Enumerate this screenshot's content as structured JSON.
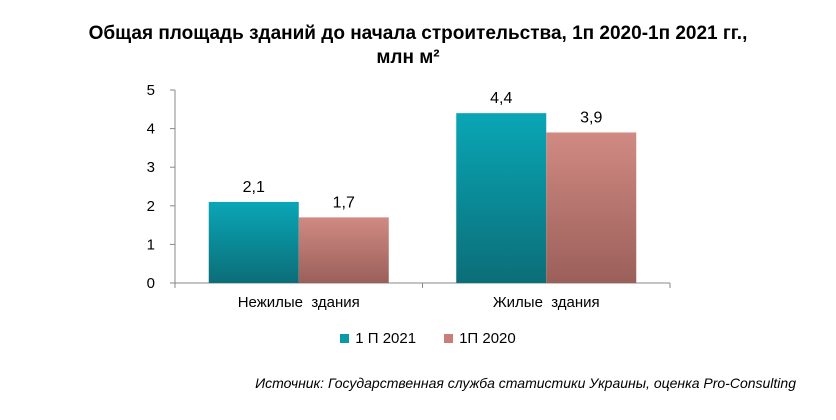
{
  "chart_data": {
    "type": "bar",
    "title_line1": "Общая площадь зданий до начала строительства, 1п 2020-1п 2021 гг.,",
    "title_line2": "млн м²",
    "categories": [
      "Нежилые  здания",
      "Жилые  здания"
    ],
    "series": [
      {
        "name": "1 П  2021",
        "values": [
          2.1,
          4.4
        ],
        "labels": [
          "2,1",
          "4,4"
        ],
        "color": "#0b98a8"
      },
      {
        "name": "1П  2020",
        "values": [
          1.7,
          3.9
        ],
        "labels": [
          "1,7",
          "3,9"
        ],
        "color": "#c97f78"
      }
    ],
    "yticks": [
      "0",
      "1",
      "2",
      "3",
      "4",
      "5"
    ],
    "ylim": [
      0,
      5
    ],
    "legend_position": "bottom",
    "grid": false,
    "source": "Источник: Государственная служба статистики Украины, оценка Pro-Consulting"
  }
}
